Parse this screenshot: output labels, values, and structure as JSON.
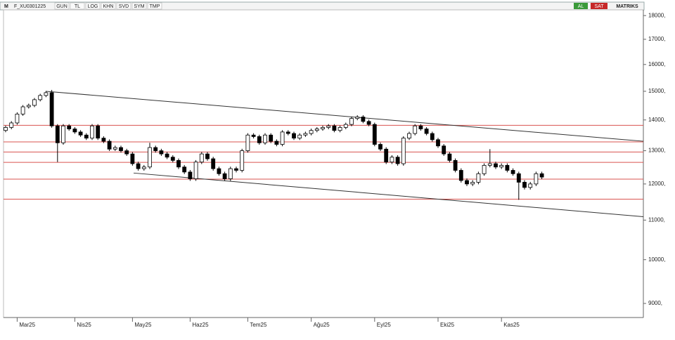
{
  "toolbar": {
    "logo": "M",
    "symbol": "F_XU0301225",
    "buttons": [
      "GUN",
      "TL",
      "LOG",
      "KHN",
      "SVD",
      "SYM",
      "TMP"
    ],
    "buy": "AL",
    "sell": "SAT",
    "brand": "MATRIKS"
  },
  "chart_data": {
    "type": "candlestick",
    "log_scale": true,
    "up_color": "#ffffff",
    "down_color": "#000000",
    "line_color": "#000000",
    "categories": [
      null,
      null,
      "Mar25",
      null,
      null,
      null,
      null,
      null,
      null,
      null,
      null,
      null,
      "Nis25",
      null,
      null,
      null,
      null,
      null,
      null,
      null,
      null,
      null,
      "May25",
      null,
      null,
      null,
      null,
      null,
      null,
      null,
      null,
      null,
      "Haz25",
      null,
      null,
      null,
      null,
      null,
      null,
      null,
      null,
      null,
      "Tem25",
      null,
      null,
      null,
      null,
      null,
      null,
      null,
      null,
      null,
      null,
      "Ağu25",
      null,
      null,
      null,
      null,
      null,
      null,
      null,
      null,
      null,
      null,
      "Eyl25",
      null,
      null,
      null,
      null,
      null,
      null,
      null,
      null,
      null,
      null,
      "Eki25",
      null,
      null,
      null,
      null,
      null,
      null,
      null,
      null,
      null,
      null,
      "Kas25",
      null,
      null,
      null,
      null,
      null,
      null,
      null
    ],
    "open": [
      13650,
      13750,
      13900,
      14200,
      14450,
      14500,
      14700,
      14850,
      14950,
      13800,
      13250,
      13800,
      13700,
      13600,
      13500,
      13400,
      13800,
      13400,
      13300,
      13050,
      13100,
      13000,
      12900,
      12600,
      12450,
      12500,
      13100,
      13000,
      12900,
      12800,
      12700,
      12500,
      12350,
      12150,
      12650,
      12900,
      12750,
      12450,
      12300,
      12150,
      12450,
      12400,
      13000,
      13500,
      13450,
      13250,
      13500,
      13300,
      13200,
      13600,
      13550,
      13400,
      13500,
      13550,
      13650,
      13700,
      13750,
      13800,
      13650,
      13750,
      13850,
      14050,
      14100,
      13950,
      13850,
      13200,
      13050,
      12650,
      12800,
      12600,
      13400,
      13550,
      13800,
      13700,
      13550,
      13350,
      13150,
      12900,
      12700,
      12400,
      12100,
      12000,
      12050,
      12300,
      12550,
      12600,
      12500,
      12550,
      12400,
      12300,
      12050,
      11900,
      12000,
      12300
    ],
    "high": [
      13810,
      13960,
      14260,
      14510,
      14560,
      14760,
      14910,
      15010,
      15050,
      13860,
      13860,
      13860,
      13760,
      13660,
      13560,
      13860,
      13860,
      13460,
      13360,
      13160,
      13160,
      13060,
      12960,
      12660,
      12560,
      13250,
      13160,
      13060,
      12960,
      12860,
      12760,
      12560,
      12410,
      12710,
      12960,
      12960,
      12810,
      12510,
      12360,
      12510,
      12510,
      13060,
      13560,
      13560,
      13510,
      13560,
      13560,
      13360,
      13660,
      13660,
      13610,
      13560,
      13610,
      13710,
      13760,
      13810,
      13860,
      13860,
      13810,
      13910,
      14110,
      14160,
      14160,
      14010,
      13910,
      13260,
      13110,
      12860,
      12860,
      13460,
      13610,
      13860,
      13860,
      13760,
      13610,
      13410,
      13210,
      12960,
      12760,
      12460,
      12160,
      12110,
      12360,
      12610,
      13050,
      12660,
      12610,
      12610,
      12460,
      12360,
      12110,
      12060,
      12360,
      12360
    ],
    "low": [
      13590,
      13690,
      13840,
      14140,
      14390,
      14440,
      14640,
      14790,
      13740,
      12650,
      13190,
      13640,
      13540,
      13440,
      13340,
      13340,
      13340,
      13240,
      12990,
      12990,
      12940,
      12840,
      12540,
      12390,
      12390,
      12440,
      12940,
      12840,
      12740,
      12640,
      12440,
      12290,
      12090,
      12090,
      12590,
      12690,
      12390,
      12240,
      12090,
      12090,
      12340,
      12340,
      12940,
      13390,
      13190,
      13190,
      13240,
      13140,
      13140,
      13490,
      13340,
      13340,
      13440,
      13490,
      13590,
      13640,
      13690,
      13590,
      13590,
      13690,
      13790,
      13990,
      13890,
      13790,
      13140,
      12990,
      12590,
      12590,
      12540,
      12540,
      13340,
      13490,
      13640,
      13490,
      13290,
      13090,
      12840,
      12640,
      12340,
      12040,
      11940,
      11940,
      11990,
      12240,
      12490,
      12440,
      12440,
      12340,
      12240,
      11550,
      11840,
      11840,
      11940,
      12140
    ],
    "close": [
      13750,
      13900,
      14200,
      14450,
      14500,
      14700,
      14850,
      14950,
      13800,
      13250,
      13800,
      13700,
      13600,
      13500,
      13400,
      13800,
      13400,
      13300,
      13050,
      13100,
      13000,
      12900,
      12600,
      12450,
      12500,
      13100,
      13000,
      12900,
      12800,
      12700,
      12500,
      12350,
      12150,
      12650,
      12900,
      12750,
      12450,
      12300,
      12150,
      12450,
      12400,
      13000,
      13500,
      13450,
      13250,
      13500,
      13300,
      13200,
      13600,
      13550,
      13400,
      13500,
      13550,
      13650,
      13700,
      13750,
      13800,
      13650,
      13750,
      13850,
      14050,
      14100,
      13950,
      13850,
      13200,
      13050,
      12650,
      12800,
      12600,
      13400,
      13550,
      13800,
      13700,
      13550,
      13350,
      13150,
      12900,
      12700,
      12400,
      12100,
      12000,
      12050,
      12300,
      12550,
      12600,
      12500,
      12550,
      12400,
      12300,
      12050,
      11900,
      12000,
      12300,
      12200
    ],
    "ylim": [
      8700,
      18250
    ],
    "yticks": [
      {
        "value": 9000,
        "label": "9000,"
      },
      {
        "value": 10000,
        "label": "10000,"
      },
      {
        "value": 11000,
        "label": "11000,"
      },
      {
        "value": 12000,
        "label": "12000,"
      },
      {
        "value": 13000,
        "label": "13000,"
      },
      {
        "value": 14000,
        "label": "14000,"
      },
      {
        "value": 15000,
        "label": "15000,"
      },
      {
        "value": 16000,
        "label": "16000,"
      },
      {
        "value": 17000,
        "label": "17000,"
      },
      {
        "value": 18000,
        "label": "18000,"
      }
    ],
    "hlines": {
      "color": "#d9534f",
      "values": [
        13820,
        13280,
        12960,
        12640,
        12140,
        11570
      ]
    },
    "trendlines": {
      "color": "#333333",
      "lines": [
        {
          "x": [
            7,
            110.6
          ],
          "values": [
            15000,
            13300
          ]
        },
        {
          "x": [
            22.2,
            110.6
          ],
          "values": [
            12320,
            11090
          ]
        }
      ]
    }
  }
}
